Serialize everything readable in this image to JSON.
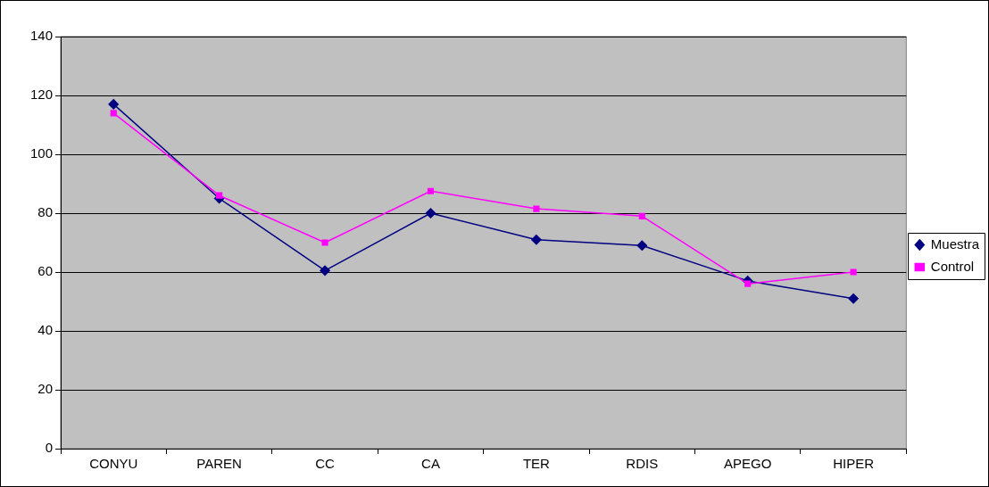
{
  "chart_data": {
    "type": "line",
    "categories": [
      "CONYU",
      "PAREN",
      "CC",
      "CA",
      "TER",
      "RDIS",
      "APEGO",
      "HIPER"
    ],
    "series": [
      {
        "name": "Muestra",
        "color": "#000080",
        "marker": "diamond",
        "values": [
          117,
          85,
          60.5,
          80,
          71,
          69,
          57,
          51
        ]
      },
      {
        "name": "Control",
        "color": "#ff00ff",
        "marker": "square",
        "values": [
          114,
          86,
          70,
          87.5,
          81.5,
          79,
          56,
          60
        ]
      }
    ],
    "ylim": [
      0,
      140
    ],
    "yticks": [
      0,
      20,
      40,
      60,
      80,
      100,
      120,
      140
    ],
    "grid": "y",
    "legend": "right",
    "line_style": "solid"
  }
}
